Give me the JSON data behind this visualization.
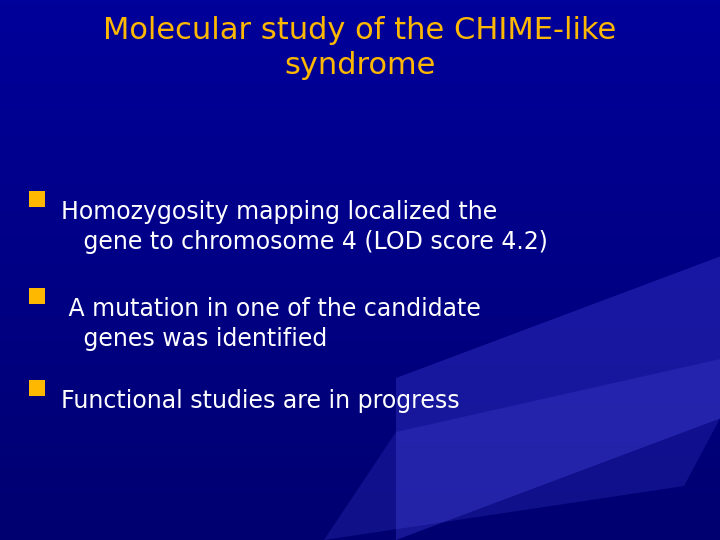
{
  "title_line1": "Molecular study of the CHIME-like",
  "title_line2": "syndrome",
  "title_color": "#FFB800",
  "bullet_color": "#FFB800",
  "text_color": "#FFFFFF",
  "bg_color_top": "#0000A0",
  "bg_color_bottom": "#000080",
  "bullet_texts": [
    "Homozygosity mapping localized the\n   gene to chromosome 4 (LOD score 4.2)",
    " A mutation in one of the candidate\n   genes was identified",
    "Functional studies are in progress"
  ],
  "title_fontsize": 22,
  "bullet_fontsize": 17,
  "figsize": [
    7.2,
    5.4
  ],
  "dpi": 100
}
